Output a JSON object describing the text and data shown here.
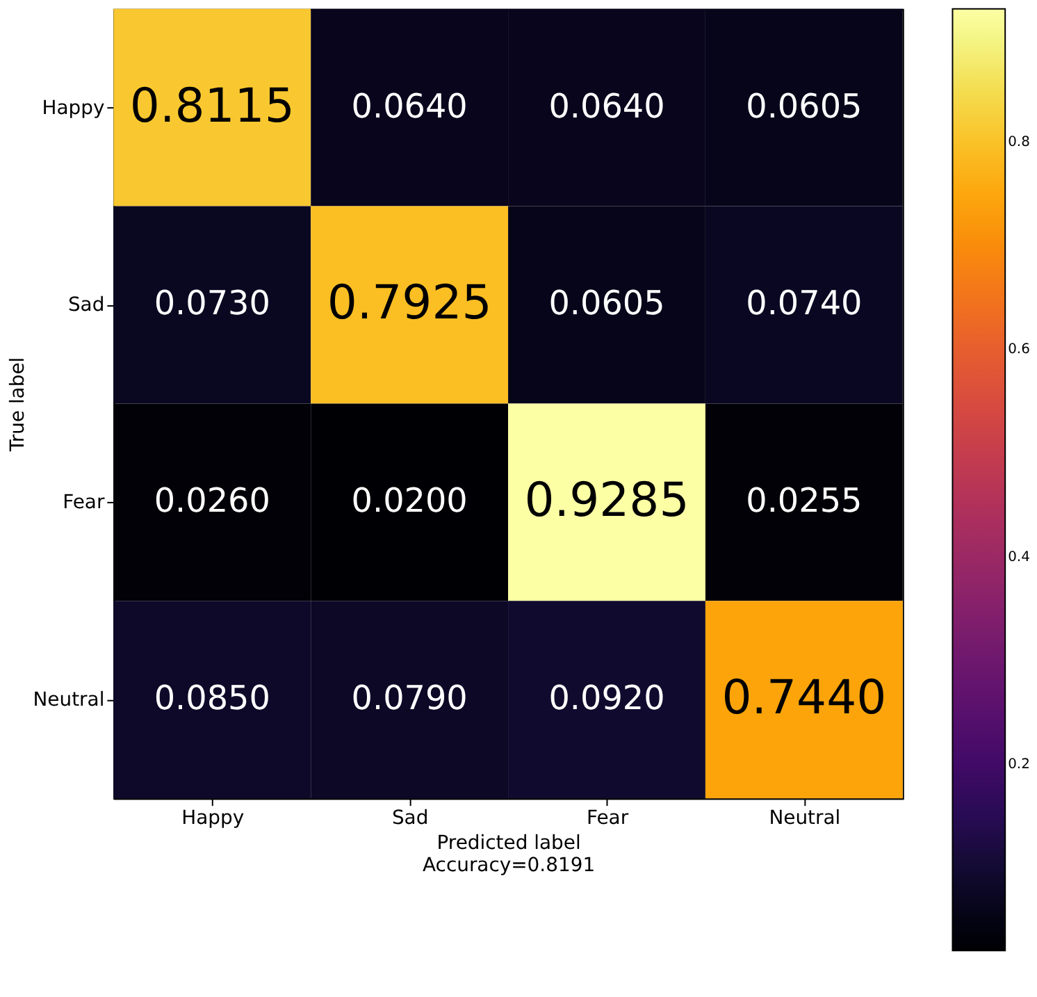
{
  "chart_data": {
    "type": "heatmap",
    "xlabel": "Predicted label",
    "ylabel": "True label",
    "annotations": [
      "Accuracy=0.8191"
    ],
    "categories": [
      "Happy",
      "Sad",
      "Fear",
      "Neutral"
    ],
    "y_categories": [
      "Happy",
      "Sad",
      "Fear",
      "Neutral"
    ],
    "cells": [
      [
        0.8115,
        0.064,
        0.064,
        0.0605
      ],
      [
        0.073,
        0.7925,
        0.0605,
        0.074
      ],
      [
        0.026,
        0.02,
        0.9285,
        0.0255
      ],
      [
        0.085,
        0.079,
        0.092,
        0.744
      ]
    ],
    "cell_labels": [
      [
        "0.8115",
        "0.0640",
        "0.0640",
        "0.0605"
      ],
      [
        "0.0730",
        "0.7925",
        "0.0605",
        "0.0740"
      ],
      [
        "0.0260",
        "0.0200",
        "0.9285",
        "0.0255"
      ],
      [
        "0.0850",
        "0.0790",
        "0.0920",
        "0.7440"
      ]
    ],
    "clim": [
      0.02,
      0.9285
    ],
    "cticks": [
      0.2,
      0.4,
      0.6,
      0.8
    ],
    "data_labels": true,
    "grid": false
  }
}
